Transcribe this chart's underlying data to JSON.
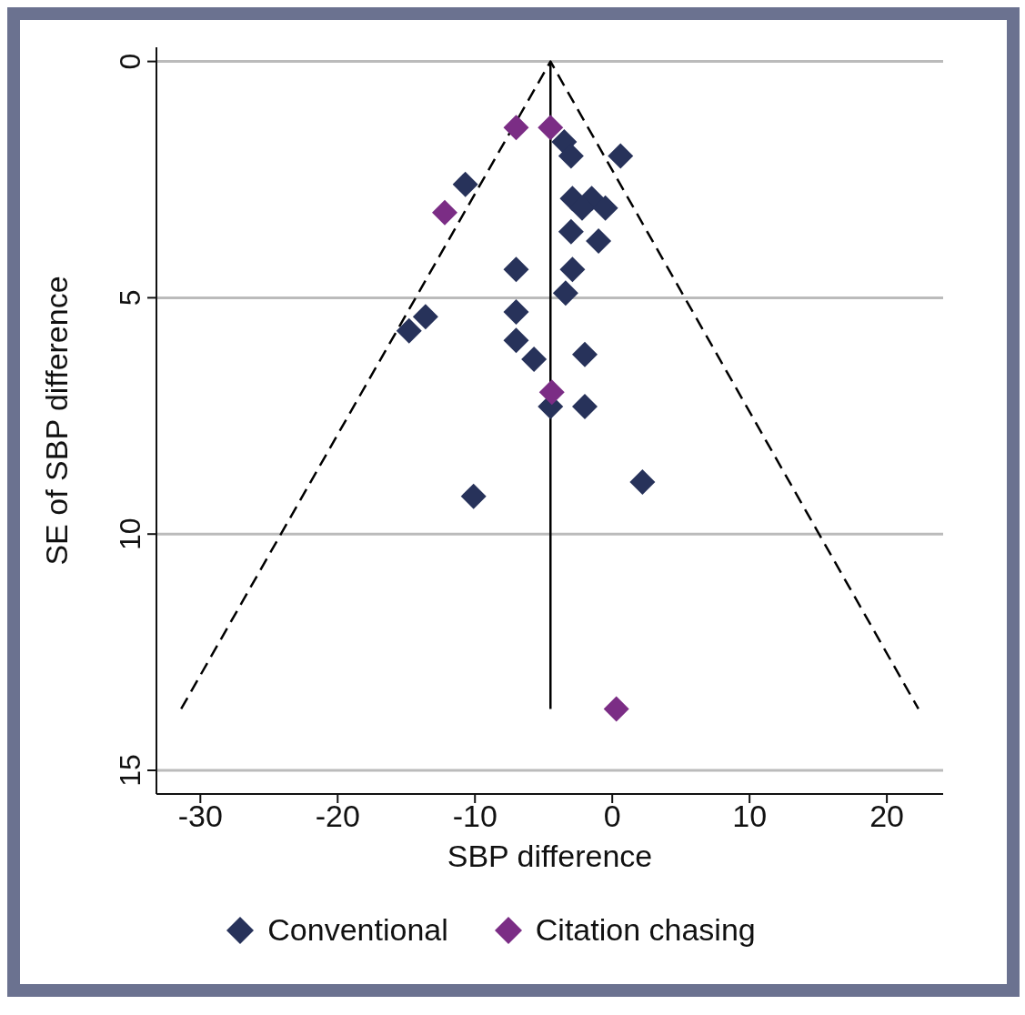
{
  "chart_data": {
    "type": "scatter",
    "xlabel": "SBP difference",
    "ylabel": "SE of SBP difference",
    "xlim": [
      -33.2,
      24.1
    ],
    "xticks": [
      -30,
      -20,
      -10,
      0,
      10,
      20
    ],
    "ylim": [
      15.5,
      -0.3
    ],
    "yticks": [
      0,
      5,
      10,
      15
    ],
    "grid": "y",
    "legend": "bottom",
    "marker": "diamond",
    "series": [
      {
        "type": "line",
        "color": "#000000",
        "line_style": "dashed",
        "marker": "none",
        "x": [
          -31.4,
          -4.5,
          22.3
        ],
        "values": [
          13.7,
          0,
          13.7
        ]
      },
      {
        "type": "line",
        "color": "#000000",
        "line_style": "solid",
        "marker": "none",
        "x": [
          -4.5,
          -4.5
        ],
        "values": [
          0,
          13.7
        ]
      },
      {
        "name": "Conventional",
        "color": "#27325a",
        "x": [
          -3.5,
          -3.0,
          0.6,
          -10.7,
          -2.9,
          -1.5,
          -2.2,
          -0.5,
          -3.0,
          -1.0,
          -7.0,
          -2.9,
          -3.4,
          -13.6,
          -14.8,
          -7.0,
          -7.0,
          -5.7,
          -2.0,
          -4.5,
          -2.0,
          -10.1,
          2.2
        ],
        "values": [
          1.7,
          2.0,
          2.0,
          2.6,
          2.9,
          2.9,
          3.1,
          3.1,
          3.6,
          3.8,
          4.4,
          4.4,
          4.9,
          5.4,
          5.7,
          5.3,
          5.9,
          6.3,
          6.2,
          7.3,
          7.3,
          9.2,
          8.9
        ]
      },
      {
        "name": "Citation chasing",
        "color": "#7b2d85",
        "x": [
          -7.0,
          -4.5,
          -12.2,
          -4.4,
          0.3
        ],
        "values": [
          1.4,
          1.4,
          3.2,
          7.0,
          13.7
        ]
      }
    ]
  }
}
